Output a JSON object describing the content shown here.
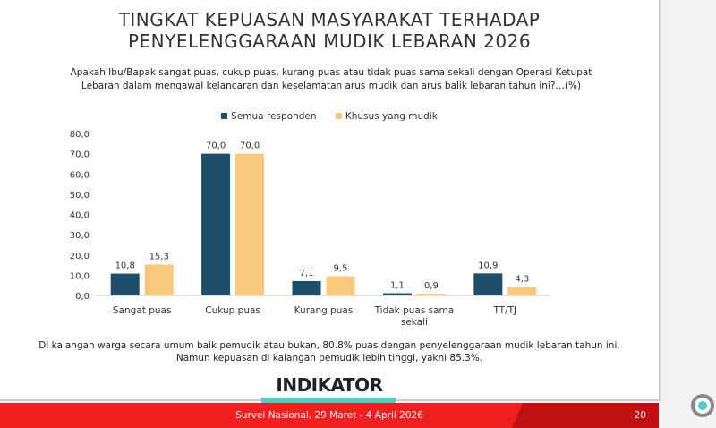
{
  "title_line1": "TINGKAT KEPUASAN MASYARAKAT TERHADAP",
  "title_line2": "PENYELENGGARAAN MUDIK LEBARAN 2026",
  "question_line1": "Apakah Ibu/Bapak sangat puas, cukup puas, kurang puas atau tidak puas sama sekali dengan Operasi Ketupat",
  "question_line2": "Lebaran dalam mengawal kelancaran dan keselamatan arus mudik dan arus balik lebaran tahun ini?…(%)",
  "note_line1": "Di kalangan warga secara umum baik pemudik atau bukan, 80.8% puas dengan penyelenggaraan mudik lebaran tahun ini.",
  "note_line2": "Namun kepuasan di kalangan pemudik lebih tinggi, yakni 85.3%.",
  "logo": "INDIKATOR",
  "footer": "Survei Nasional, 29 Maret - 4 April 2026",
  "page_number": "20",
  "colors": {
    "series1": "#1f4e6b",
    "series2": "#f8c87c",
    "footer": "#f02020",
    "accent": "#4ecdc4"
  },
  "chart_data": {
    "type": "bar",
    "categories": [
      "Sangat puas",
      "Cukup puas",
      "Kurang puas",
      "Tidak puas sama sekali",
      "TT/TJ"
    ],
    "series": [
      {
        "name": "Semua responden",
        "values": [
          10.8,
          70.0,
          7.1,
          1.1,
          10.9
        ]
      },
      {
        "name": "Khusus yang mudik",
        "values": [
          15.3,
          70.0,
          9.5,
          0.9,
          4.3
        ]
      }
    ],
    "yticks": [
      "0,0",
      "10,0",
      "20,0",
      "30,0",
      "40,0",
      "50,0",
      "60,0",
      "70,0",
      "80,0"
    ],
    "ylim": [
      0,
      80
    ],
    "legend": "top",
    "grid": false
  }
}
